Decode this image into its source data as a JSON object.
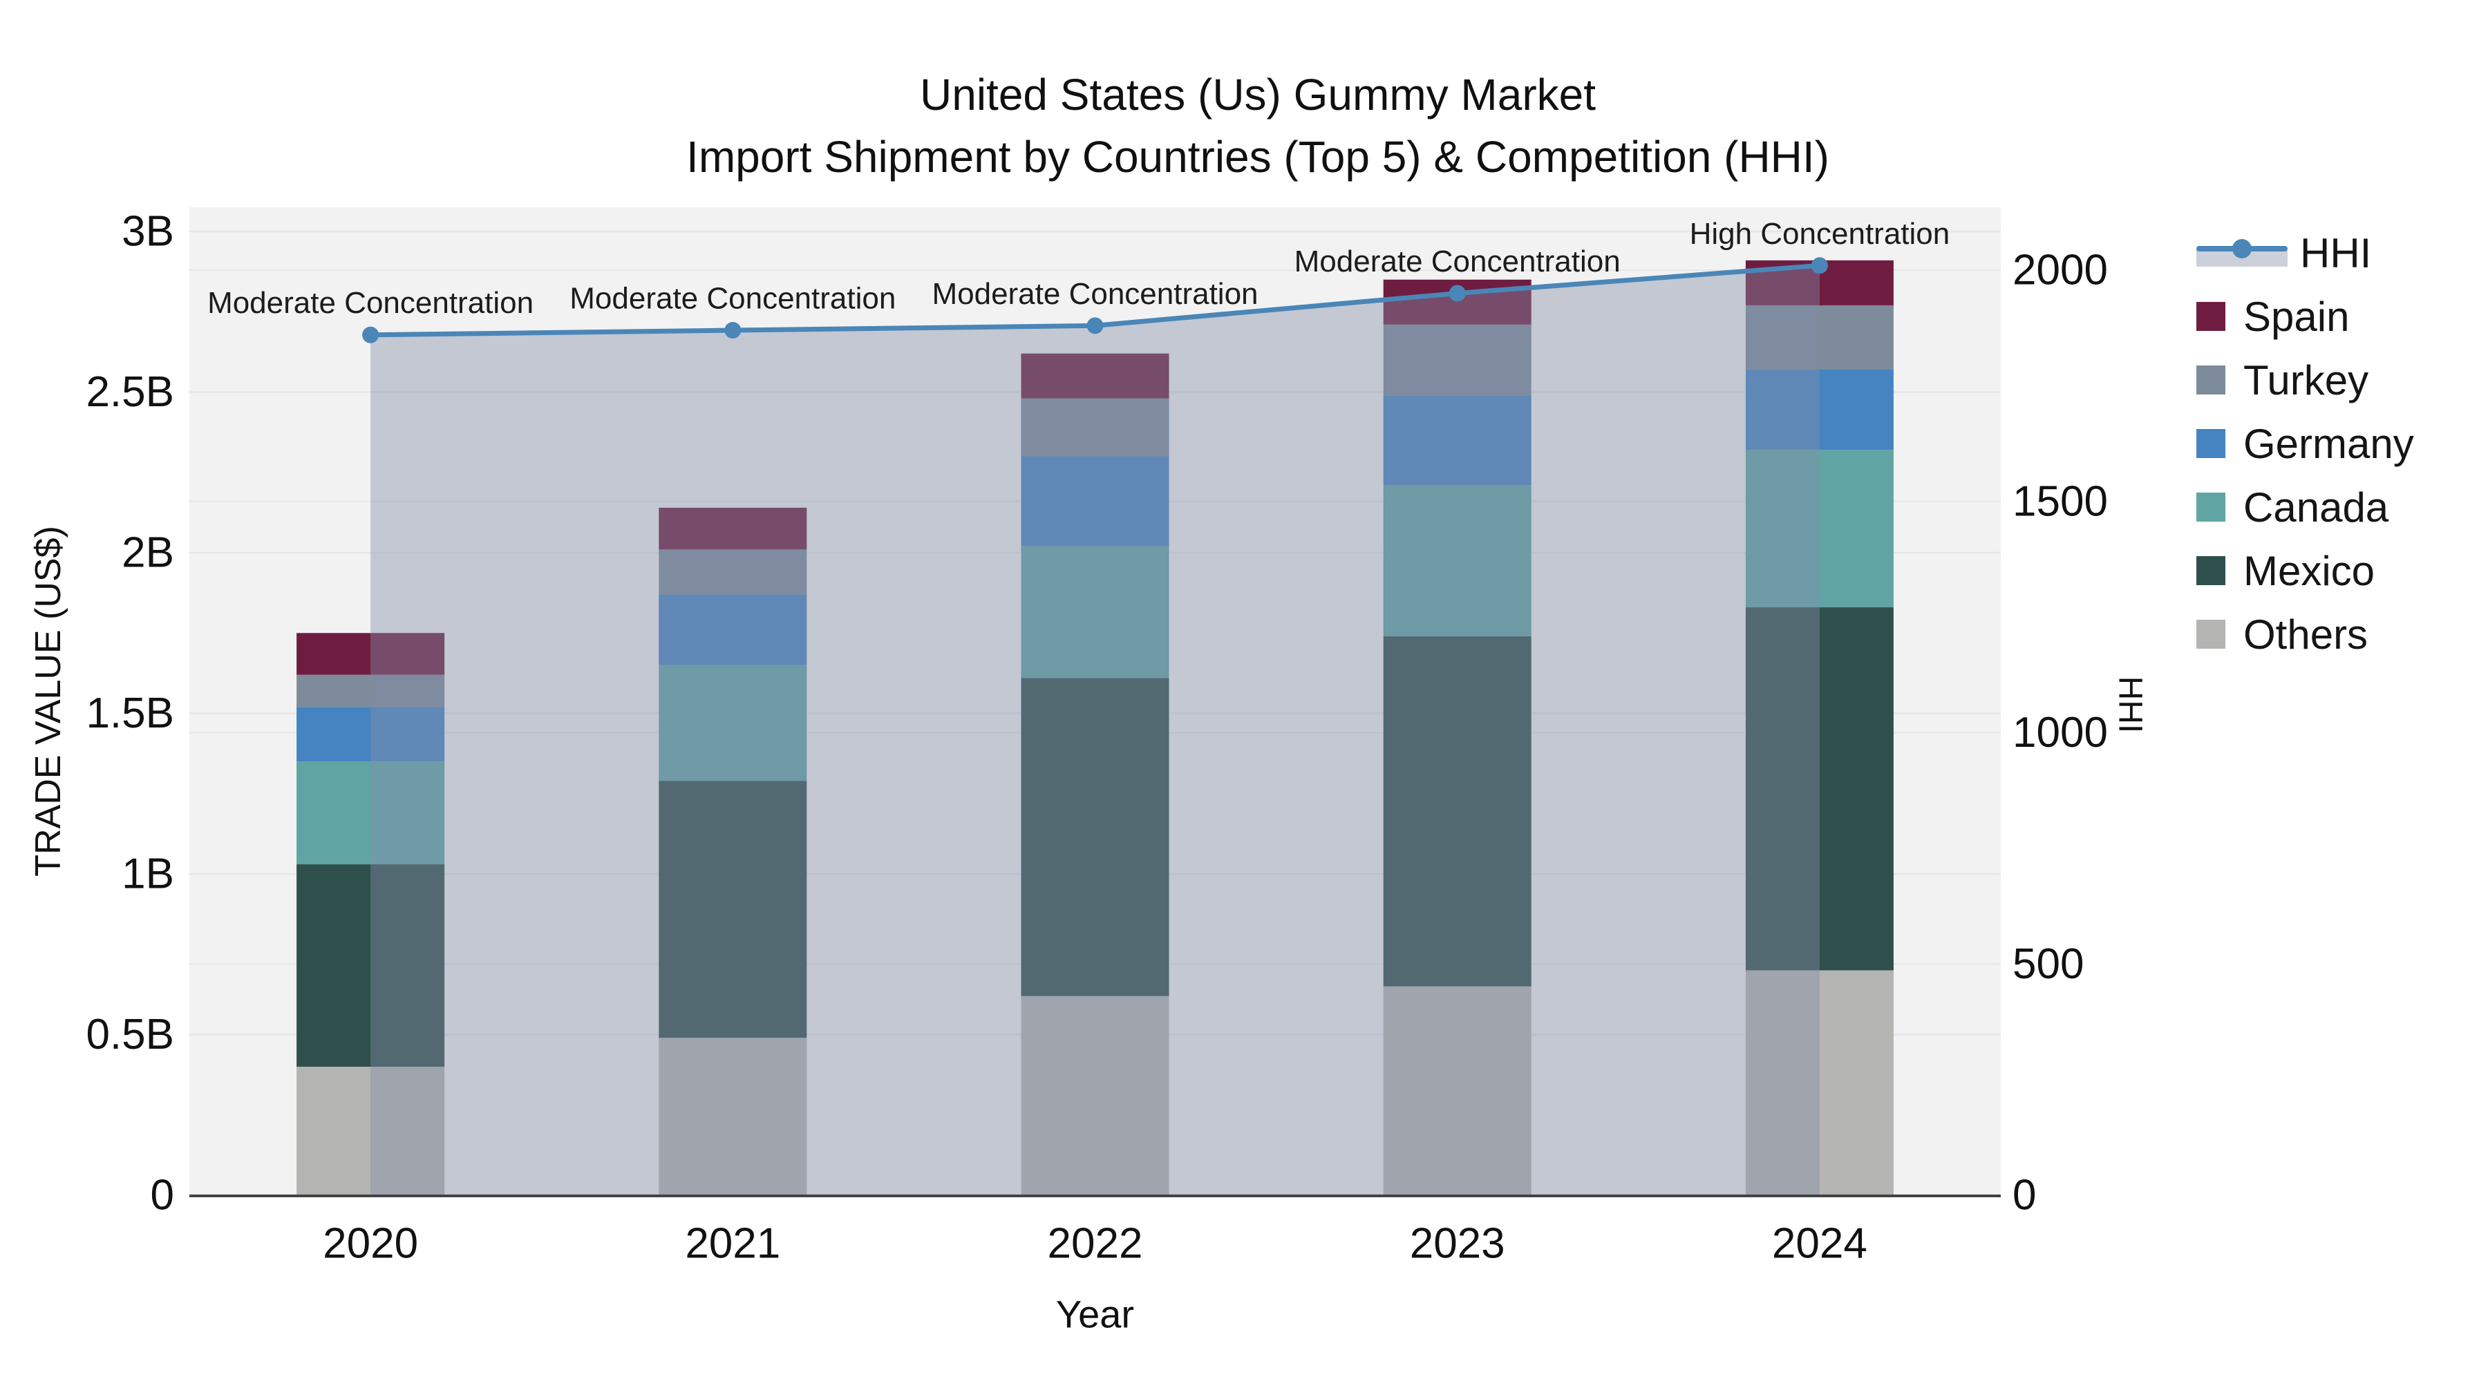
{
  "title": {
    "line1": "United States (Us) Gummy Market",
    "line2": "Import Shipment by Countries (Top 5) & Competition (HHI)"
  },
  "chart_data": {
    "type": "bar",
    "subtype": "stacked-bars-with-line-area",
    "categories": [
      "2020",
      "2021",
      "2022",
      "2023",
      "2024"
    ],
    "xlabel": "Year",
    "ylabel_left": "TRADE VALUE (US$)",
    "ylabel_right": "HHI",
    "units": "billions of US$",
    "grid": true,
    "legend_position": "right",
    "stack_order_bottom_to_top": [
      "Others",
      "Mexico",
      "Canada",
      "Germany",
      "Turkey",
      "Spain"
    ],
    "series": [
      {
        "name": "Spain",
        "color": "#6e1d41",
        "values": [
          0.13,
          0.13,
          0.14,
          0.14,
          0.14
        ]
      },
      {
        "name": "Turkey",
        "color": "#7d8b9b",
        "values": [
          0.1,
          0.14,
          0.18,
          0.22,
          0.2
        ]
      },
      {
        "name": "Germany",
        "color": "#4583c1",
        "values": [
          0.17,
          0.22,
          0.28,
          0.28,
          0.25
        ]
      },
      {
        "name": "Canada",
        "color": "#60a4a4",
        "values": [
          0.32,
          0.36,
          0.41,
          0.47,
          0.49
        ]
      },
      {
        "name": "Mexico",
        "color": "#2f4f4d",
        "values": [
          0.63,
          0.8,
          0.99,
          1.09,
          1.13
        ]
      },
      {
        "name": "Others",
        "color": "#b4b4b2",
        "values": [
          0.4,
          0.49,
          0.62,
          0.65,
          0.7
        ]
      }
    ],
    "bar_totals": [
      1.75,
      2.14,
      2.62,
      2.85,
      2.91
    ],
    "line_series": {
      "name": "HHI",
      "color": "#4a86b7",
      "area_color": "rgba(132,144,166,0.42)",
      "values": [
        1860,
        1870,
        1880,
        1950,
        2010
      ]
    },
    "annotations": [
      {
        "year": "2020",
        "text": "Moderate Concentration"
      },
      {
        "year": "2021",
        "text": "Moderate Concentration"
      },
      {
        "year": "2022",
        "text": "Moderate Concentration"
      },
      {
        "year": "2023",
        "text": "Moderate Concentration"
      },
      {
        "year": "2024",
        "text": "High Concentration"
      }
    ],
    "left_axis": {
      "range": [
        0,
        3.08
      ],
      "ticks": [
        {
          "v": 0,
          "label": "0"
        },
        {
          "v": 0.5,
          "label": "0.5B"
        },
        {
          "v": 1,
          "label": "1B"
        },
        {
          "v": 1.5,
          "label": "1.5B"
        },
        {
          "v": 2,
          "label": "2B"
        },
        {
          "v": 2.5,
          "label": "2.5B"
        },
        {
          "v": 3,
          "label": "3B"
        }
      ]
    },
    "right_axis": {
      "range": [
        0,
        2136
      ],
      "ticks": [
        {
          "v": 0,
          "label": "0"
        },
        {
          "v": 500,
          "label": "500"
        },
        {
          "v": 1000,
          "label": "1000"
        },
        {
          "v": 1500,
          "label": "1500"
        },
        {
          "v": 2000,
          "label": "2000"
        }
      ]
    },
    "colors": {
      "plot_background": "#f2f2f2",
      "gridline": "#e4e6e9",
      "axis_line": "#444444",
      "text": "#111111"
    }
  }
}
